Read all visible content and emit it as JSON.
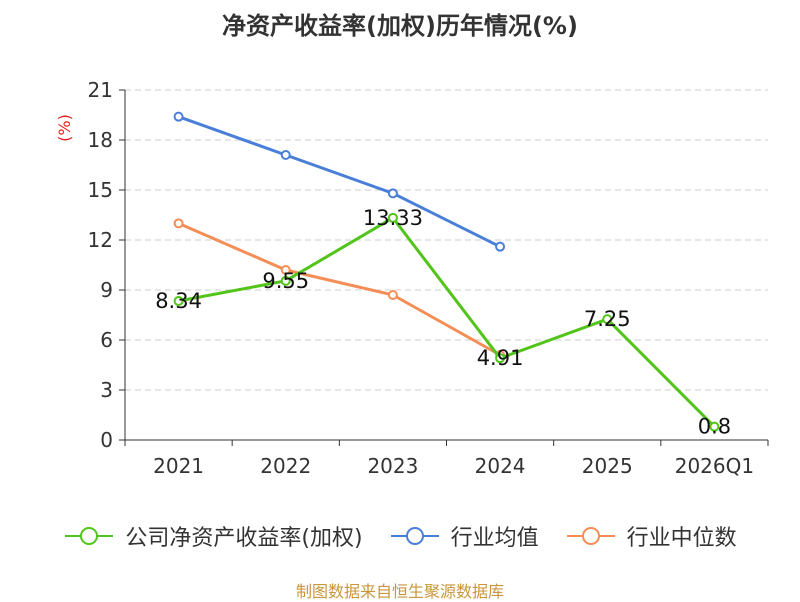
{
  "chart_data": {
    "type": "line",
    "title": "净资产收益率(加权)历年情况(%)",
    "ylabel": "(%)",
    "xlabel": "",
    "categories": [
      "2021",
      "2022",
      "2023",
      "2024",
      "2025",
      "2026Q1"
    ],
    "ylim": [
      0,
      21
    ],
    "yticks": [
      "0",
      "3",
      "6",
      "9",
      "12",
      "15",
      "18",
      "21"
    ],
    "grid": true,
    "series": [
      {
        "name": "公司净资产收益率(加权)",
        "color": "#52c41a",
        "values": [
          8.34,
          9.55,
          13.33,
          4.91,
          7.25,
          0.8
        ],
        "labels": [
          "8.34",
          "9.55",
          "13.33",
          "4.91",
          "7.25",
          "0.8"
        ]
      },
      {
        "name": "行业均值",
        "color": "#4a7fd9",
        "values": [
          19.4,
          17.1,
          14.8,
          11.6,
          null,
          null
        ],
        "labels": []
      },
      {
        "name": "行业中位数",
        "color": "#f58d56",
        "values": [
          13.0,
          10.2,
          8.7,
          5.1,
          null,
          null
        ],
        "labels": []
      }
    ],
    "legend_position": "bottom"
  },
  "source": "制图数据来自恒生聚源数据库"
}
